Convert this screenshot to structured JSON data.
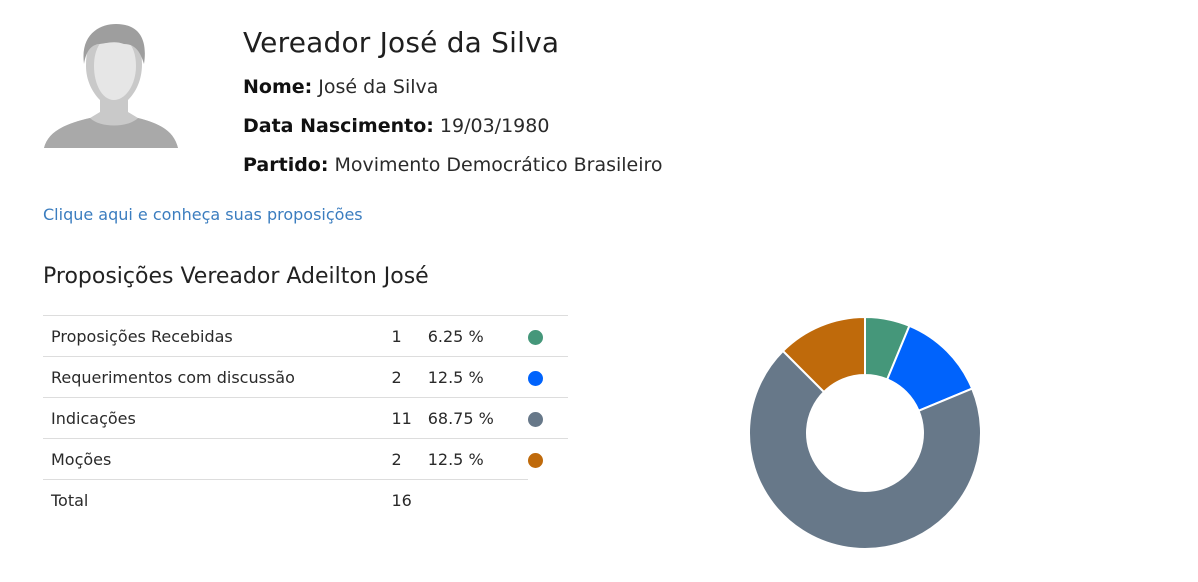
{
  "profile": {
    "title": "Vereador José da Silva",
    "name_label": "Nome:",
    "name_value": "José da Silva",
    "birth_label": "Data Nascimento:",
    "birth_value": "19/03/1980",
    "party_label": "Partido:",
    "party_value": "Movimento Democrático Brasileiro",
    "avatar_icon": "person-silhouette-icon"
  },
  "link": {
    "label": "Clique aqui e conheça suas proposições"
  },
  "section": {
    "title": "Proposições Vereador Adeilton José"
  },
  "table": {
    "rows": [
      {
        "label": "Proposições Recebidas",
        "count": "1",
        "percent": "6.25 %",
        "color": "#45977a"
      },
      {
        "label": "Requerimentos com discussão",
        "count": "2",
        "percent": "12.5 %",
        "color": "#0063fc"
      },
      {
        "label": "Indicações",
        "count": "11",
        "percent": "68.75 %",
        "color": "#677889"
      },
      {
        "label": "Moções",
        "count": "2",
        "percent": "12.5 %",
        "color": "#bf6a0b"
      }
    ],
    "total": {
      "label": "Total",
      "count": "16"
    }
  },
  "chart_data": {
    "type": "pie",
    "categories": [
      "Proposições Recebidas",
      "Requerimentos com discussão",
      "Indicações",
      "Moções"
    ],
    "values": [
      1,
      2,
      11,
      2
    ],
    "colors": [
      "#45977a",
      "#0063fc",
      "#677889",
      "#bf6a0b"
    ],
    "donut": true,
    "legend": "none"
  }
}
